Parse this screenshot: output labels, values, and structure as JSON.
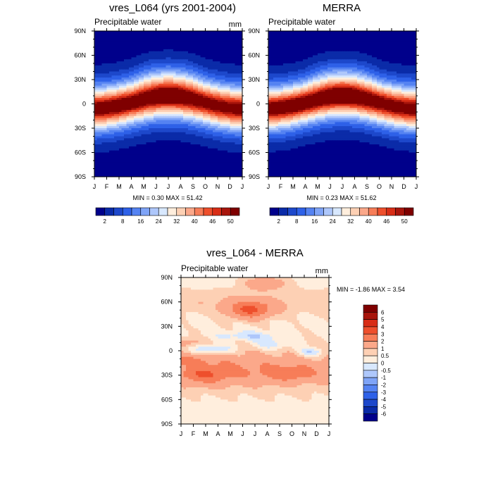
{
  "chart_data": [
    {
      "type": "heatmap",
      "title": "vres_L064 (yrs 2001-2004)",
      "variable": "Precipitable water",
      "units": "mm",
      "x_ticks": [
        "J",
        "F",
        "M",
        "A",
        "M",
        "J",
        "J",
        "A",
        "S",
        "O",
        "N",
        "D",
        "J"
      ],
      "y_ticks": [
        "90N",
        "60N",
        "30N",
        "0",
        "30S",
        "60S",
        "90S"
      ],
      "stats": "MIN =   0.30 MAX =  51.42",
      "field": {
        "kind": "absolute",
        "amp": 52.5,
        "width_deg": 22,
        "itcz_lat": 1.5,
        "itcz_amp": 7.5,
        "tilt": 0.05,
        "nh_summer_boost": 7,
        "hot_spots": [
          {
            "month": 3.0,
            "lat": 0,
            "amp": 2.5,
            "w_month": 1.5,
            "w_lat": 8
          },
          {
            "month": 7.2,
            "lat": 9,
            "amp": 1.8,
            "w_month": 1.6,
            "w_lat": 6
          }
        ]
      },
      "colorbar": {
        "levels": [
          2,
          5,
          8,
          12,
          16,
          20,
          24,
          28,
          32,
          36,
          40,
          43,
          46,
          48,
          50
        ],
        "labels": [
          "2",
          "8",
          "16",
          "24",
          "32",
          "40",
          "46",
          "50"
        ],
        "colors": [
          "#00008B",
          "#0A2BA8",
          "#1D48CB",
          "#2E61E8",
          "#5583F2",
          "#7FA4F7",
          "#AEC7FB",
          "#D8E8FE",
          "#FFEEDD",
          "#FDD0B4",
          "#FBA88A",
          "#F77D58",
          "#EE4F2C",
          "#D82D16",
          "#A8150C",
          "#7F0000"
        ]
      }
    },
    {
      "type": "heatmap",
      "title": "MERRA",
      "variable": "Precipitable water",
      "units": "",
      "x_ticks": [
        "J",
        "F",
        "M",
        "A",
        "M",
        "J",
        "J",
        "A",
        "S",
        "O",
        "N",
        "D",
        "J"
      ],
      "y_ticks": [
        "90N",
        "60N",
        "30N",
        "0",
        "30S",
        "60S",
        "90S"
      ],
      "stats": "MIN =   0.23 MAX =  51.62",
      "field": {
        "kind": "absolute",
        "amp": 53,
        "width_deg": 21.5,
        "itcz_lat": 1.5,
        "itcz_amp": 7.5,
        "tilt": 0.05,
        "nh_summer_boost": 7,
        "hot_spots": [
          {
            "month": 3.2,
            "lat": -1,
            "amp": 2.8,
            "w_month": 1.4,
            "w_lat": 7
          },
          {
            "month": 7.5,
            "lat": 9,
            "amp": 1.6,
            "w_month": 1.6,
            "w_lat": 6
          }
        ]
      },
      "colorbar": {
        "levels": [
          2,
          5,
          8,
          12,
          16,
          20,
          24,
          28,
          32,
          36,
          40,
          43,
          46,
          48,
          50
        ],
        "labels": [
          "2",
          "8",
          "16",
          "24",
          "32",
          "40",
          "46",
          "50"
        ],
        "colors": [
          "#00008B",
          "#0A2BA8",
          "#1D48CB",
          "#2E61E8",
          "#5583F2",
          "#7FA4F7",
          "#AEC7FB",
          "#D8E8FE",
          "#FFEEDD",
          "#FDD0B4",
          "#FBA88A",
          "#F77D58",
          "#EE4F2C",
          "#D82D16",
          "#A8150C",
          "#7F0000"
        ]
      }
    },
    {
      "type": "heatmap",
      "title": "vres_L064 - MERRA",
      "variable": "Precipitable water",
      "units": "mm",
      "x_ticks": [
        "J",
        "F",
        "M",
        "A",
        "M",
        "J",
        "J",
        "A",
        "S",
        "O",
        "N",
        "D",
        "J"
      ],
      "y_ticks": [
        "90N",
        "60N",
        "30N",
        "0",
        "30S",
        "60S",
        "90S"
      ],
      "stats": "MIN =  -1.86 MAX =   3.54",
      "field": {
        "kind": "difference",
        "base": 0.3,
        "features": [
          {
            "month": 6.6,
            "lat": 50,
            "amp": 2.6,
            "w_month": 1.3,
            "w_lat": 8
          },
          {
            "month": 7.8,
            "lat": 83,
            "amp": 1.4,
            "w_month": 1.2,
            "w_lat": 6
          },
          {
            "month": 2.8,
            "lat": -30,
            "amp": 1.6,
            "w_month": 1.4,
            "w_lat": 8
          },
          {
            "month": 10.0,
            "lat": -28,
            "amp": 1.3,
            "w_month": 1.5,
            "w_lat": 7
          },
          {
            "month": 6.0,
            "lat": -25,
            "amp": 0.8,
            "w_month": 3.0,
            "w_lat": 12
          },
          {
            "month": 3.5,
            "lat": 2,
            "amp": -1.2,
            "w_month": 1.3,
            "w_lat": 4
          },
          {
            "month": 11.5,
            "lat": -2,
            "amp": -1.3,
            "w_month": 0.8,
            "w_lat": 4
          },
          {
            "month": 6.5,
            "lat": 18,
            "amp": -0.9,
            "w_month": 1.8,
            "w_lat": 4
          },
          {
            "month": 8.5,
            "lat": 8,
            "amp": -0.9,
            "w_month": 1.2,
            "w_lat": 5
          },
          {
            "month": 1.0,
            "lat": 10,
            "amp": 1.0,
            "w_month": 1.0,
            "w_lat": 4
          },
          {
            "month": 1.5,
            "lat": -12,
            "amp": 1.0,
            "w_month": 1.5,
            "w_lat": 4
          }
        ],
        "band_center_lat": -20,
        "band_width_deg": 30,
        "band_amp": 0.9
      },
      "colorbar": {
        "levels": [
          -6,
          -5,
          -4,
          -3,
          -2,
          -1,
          -0.5,
          0,
          0.5,
          1,
          2,
          3,
          4,
          5,
          6
        ],
        "labels": [
          "6",
          "5",
          "4",
          "3",
          "2",
          "1",
          "0.5",
          "0",
          "-0.5",
          "-1",
          "-2",
          "-3",
          "-4",
          "-5",
          "-6"
        ],
        "colors": [
          "#00008B",
          "#0A2BA8",
          "#1D48CB",
          "#2E61E8",
          "#5583F2",
          "#7FA4F7",
          "#AEC7FB",
          "#D8E8FE",
          "#FFEEDD",
          "#FDD0B4",
          "#FBA88A",
          "#F77D58",
          "#EE4F2C",
          "#D82D16",
          "#A8150C",
          "#7F0000"
        ]
      }
    }
  ]
}
